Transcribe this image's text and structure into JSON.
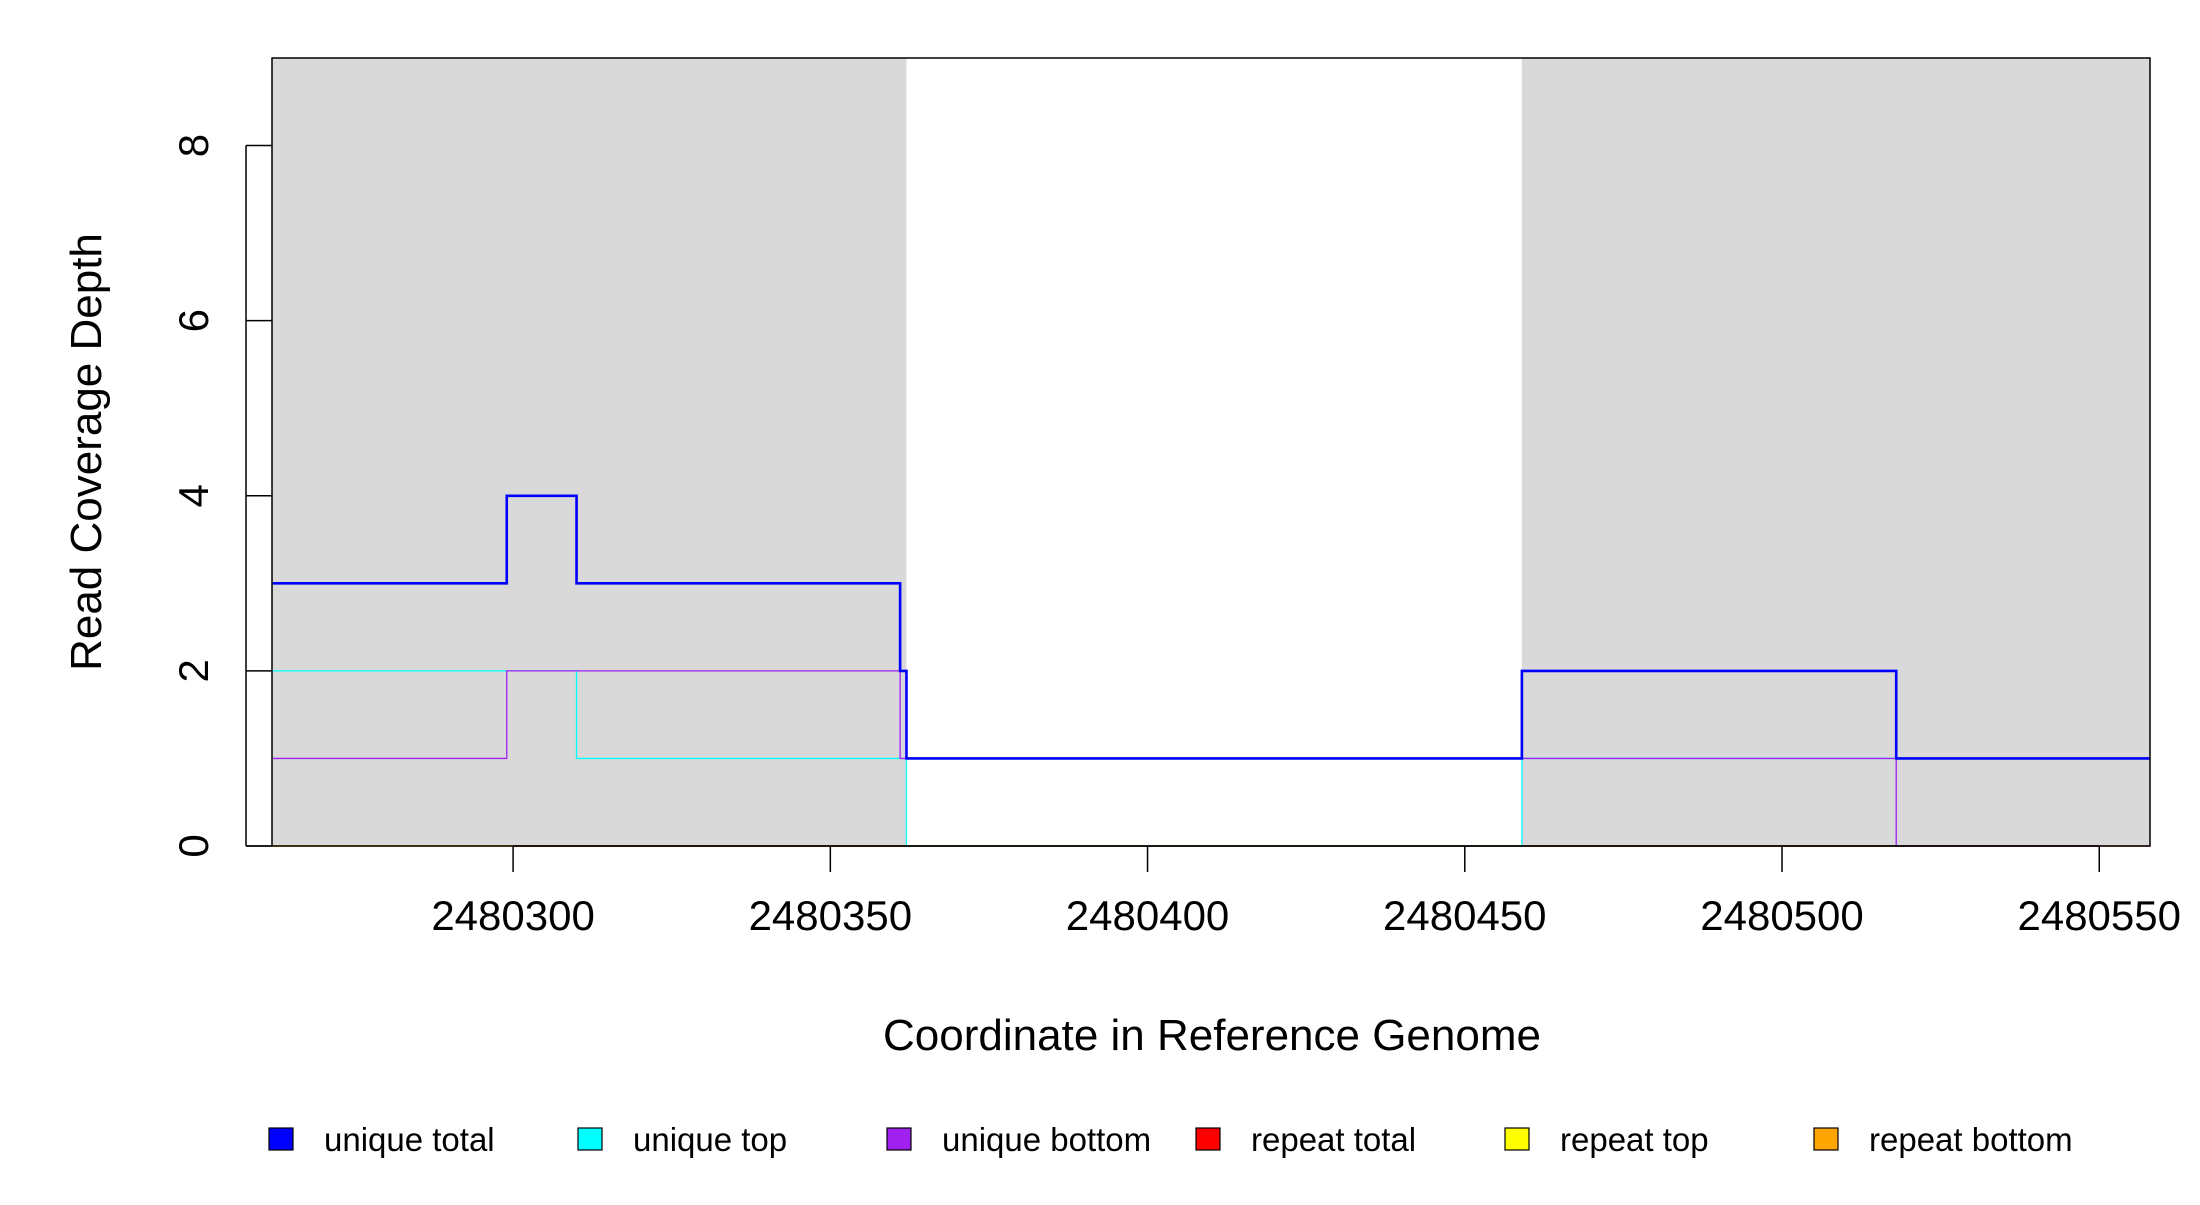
{
  "chart_data": {
    "type": "line",
    "step": true,
    "xlabel": "Coordinate in Reference Genome",
    "ylabel": "Read Coverage Depth",
    "xlim": [
      2480262,
      2480558
    ],
    "ylim": [
      0,
      9
    ],
    "x_ticks": [
      2480300,
      2480350,
      2480400,
      2480450,
      2480500,
      2480550
    ],
    "x_tick_labels": [
      "2480300",
      "2480350",
      "2480400",
      "2480450",
      "2480500",
      "2480550"
    ],
    "y_ticks": [
      0,
      2,
      4,
      6,
      8
    ],
    "y_tick_labels": [
      "0",
      "2",
      "4",
      "6",
      "8"
    ],
    "shaded_regions": [
      [
        2480262,
        2480362
      ],
      [
        2480459,
        2480558
      ]
    ],
    "shade_color": "#d9d9d9",
    "legend_position": "bottom",
    "series": [
      {
        "name": "unique total",
        "color": "#0000ff",
        "x": [
          2480262,
          2480299,
          2480310,
          2480361,
          2480362,
          2480459,
          2480518,
          2480558
        ],
        "values": [
          3,
          4,
          3,
          2,
          1,
          2,
          1,
          1
        ]
      },
      {
        "name": "unique top",
        "color": "#00ffff",
        "x": [
          2480262,
          2480310,
          2480362,
          2480459,
          2480518,
          2480558
        ],
        "values": [
          2,
          1,
          0,
          1,
          1,
          1
        ]
      },
      {
        "name": "unique bottom",
        "color": "#a020f0",
        "x": [
          2480262,
          2480299,
          2480361,
          2480362,
          2480459,
          2480518,
          2480558
        ],
        "values": [
          1,
          2,
          1,
          1,
          1,
          0,
          0
        ]
      },
      {
        "name": "repeat total",
        "color": "#ff0000",
        "x": [
          2480262,
          2480558
        ],
        "values": [
          0,
          0
        ]
      },
      {
        "name": "repeat top",
        "color": "#ffff00",
        "x": [
          2480262,
          2480558
        ],
        "values": [
          0,
          0
        ]
      },
      {
        "name": "repeat bottom",
        "color": "#ffa500",
        "x": [
          2480262,
          2480558
        ],
        "values": [
          0,
          0
        ]
      }
    ]
  }
}
